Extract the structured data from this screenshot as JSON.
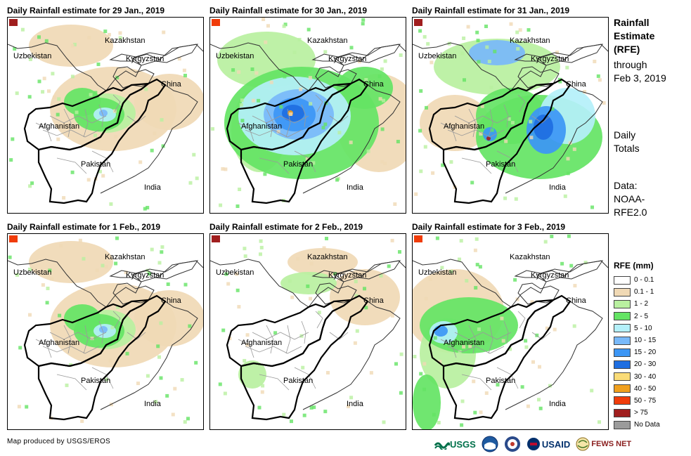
{
  "panels": [
    {
      "title": "Daily Rainfall estimate for 29 Jan., 2019",
      "rain_level": "moderate"
    },
    {
      "title": "Daily Rainfall estimate for 30 Jan., 2019",
      "rain_level": "heavy"
    },
    {
      "title": "Daily Rainfall estimate for 31 Jan., 2019",
      "rain_level": "heavy-east"
    },
    {
      "title": "Daily Rainfall estimate for 1 Feb., 2019",
      "rain_level": "moderate"
    },
    {
      "title": "Daily Rainfall estimate for 2 Feb., 2019",
      "rain_level": "light"
    },
    {
      "title": "Daily Rainfall estimate for 3 Feb., 2019",
      "rain_level": "moderate-west"
    }
  ],
  "country_labels": {
    "kazakhstan": "Kazakhstan",
    "uzbekistan": "Uzbekistan",
    "kyrgyzstan": "Kyrgyzstan",
    "china": "China",
    "afghanistan": "Afghanistan",
    "pakistan": "Pakistan",
    "india": "India"
  },
  "side_panel": {
    "title_line1": "Rainfall",
    "title_line2": "Estimate",
    "title_line3": "(RFE)",
    "through_line1": "through",
    "through_line2": "Feb 3, 2019",
    "daily_line1": "Daily",
    "daily_line2": "Totals",
    "data_line1": "Data:",
    "data_line2": "NOAA-",
    "data_line3": "RFE2.0"
  },
  "legend": {
    "title": "RFE (mm)",
    "items": [
      {
        "label": "0 - 0.1",
        "color": "#ffffff"
      },
      {
        "label": "0.1 - 1",
        "color": "#f0d9b5"
      },
      {
        "label": "1 - 2",
        "color": "#b9f0a0"
      },
      {
        "label": "2 - 5",
        "color": "#64e464"
      },
      {
        "label": "5 - 10",
        "color": "#b4f0fa"
      },
      {
        "label": "10 - 15",
        "color": "#78b9fa"
      },
      {
        "label": "15 - 20",
        "color": "#3c96f5"
      },
      {
        "label": "20 - 30",
        "color": "#1e6ee1"
      },
      {
        "label": "30 - 40",
        "color": "#fadc78"
      },
      {
        "label": "40 - 50",
        "color": "#f0a01e"
      },
      {
        "label": "50 - 75",
        "color": "#f03c0a"
      },
      {
        "label": "> 75",
        "color": "#a01e1e"
      },
      {
        "label": "No Data",
        "color": "#9b9b9b"
      }
    ]
  },
  "footer": {
    "credit": "Map produced by USGS/EROS",
    "logo_usgs": "USGS",
    "logo_usaid": "USAID",
    "logo_fewsnet": "FEWS NET"
  }
}
